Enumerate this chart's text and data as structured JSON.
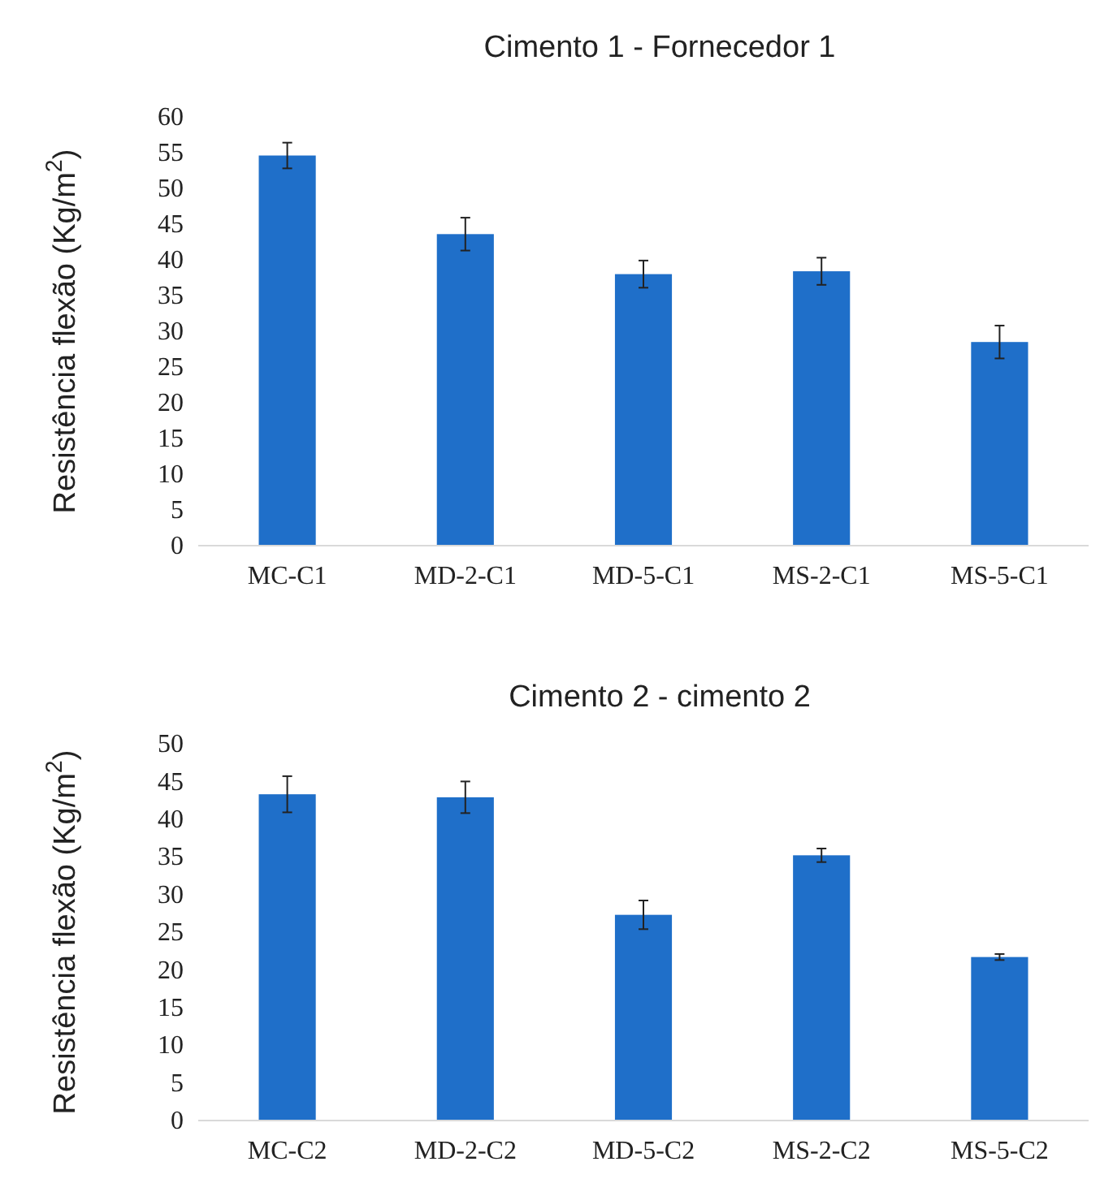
{
  "chart_data": [
    {
      "type": "bar",
      "title": "Cimento 1 - Fornecedor 1",
      "ylabel": "Resistência flexão (Kg/m$^{2}$)",
      "categories": [
        "MC-C1",
        "MD-2-C1",
        "MD-5-C1",
        "MS-2-C1",
        "MS-5-C1"
      ],
      "values": [
        54.6,
        43.6,
        38.0,
        38.4,
        28.5
      ],
      "errors": [
        1.8,
        2.3,
        1.9,
        1.9,
        2.3
      ],
      "color": "#1f6fc9",
      "ylim": [
        0,
        60
      ],
      "yticks": [
        0,
        5,
        10,
        15,
        20,
        25,
        30,
        35,
        40,
        45,
        50,
        55,
        60
      ],
      "grid": false
    },
    {
      "type": "bar",
      "title": "Cimento 2 - cimento 2",
      "ylabel": "Resistência flexão (Kg/m$^{2}$)",
      "categories": [
        "MC-C2",
        "MD-2-C2",
        "MD-5-C2",
        "MS-2-C2",
        "MS-5-C2"
      ],
      "values": [
        43.3,
        42.9,
        27.3,
        35.2,
        21.7
      ],
      "errors": [
        2.4,
        2.1,
        1.9,
        0.9,
        0.4
      ],
      "color": "#1f6fc9",
      "ylim": [
        0,
        50
      ],
      "yticks": [
        0,
        5,
        10,
        15,
        20,
        25,
        30,
        35,
        40,
        45,
        50
      ],
      "grid": false
    }
  ]
}
